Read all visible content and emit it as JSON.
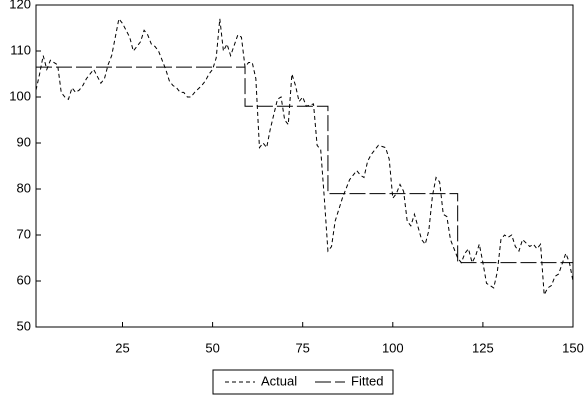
{
  "chart_data": {
    "type": "line",
    "xlim": [
      1,
      150
    ],
    "xticks": [
      25,
      50,
      75,
      100,
      125,
      150
    ],
    "ylim": [
      50,
      120
    ],
    "yticks": [
      50,
      60,
      70,
      80,
      90,
      100,
      110,
      120
    ],
    "series": [
      {
        "name": "Actual",
        "color": "#000000",
        "dash": "4,3",
        "x": [
          1,
          2,
          3,
          4,
          5,
          7,
          8,
          9,
          10,
          11,
          12,
          13,
          14,
          15,
          17,
          18,
          19,
          20,
          21,
          22,
          23,
          24,
          25,
          27,
          28,
          29,
          30,
          31,
          32,
          33,
          34,
          35,
          37,
          38,
          39,
          40,
          41,
          42,
          43,
          44,
          45,
          47,
          48,
          49,
          50,
          51,
          52,
          53,
          54,
          55,
          57,
          58,
          59,
          60,
          61,
          62,
          63,
          64,
          65,
          66,
          68,
          69,
          70,
          71,
          72,
          73,
          74,
          75,
          76,
          78,
          79,
          80,
          81,
          82,
          83,
          84,
          85,
          86,
          88,
          89,
          90,
          91,
          92,
          93,
          94,
          95,
          96,
          98,
          99,
          100,
          101,
          102,
          103,
          104,
          105,
          106,
          108,
          109,
          110,
          111,
          112,
          113,
          114,
          115,
          116,
          118,
          119,
          120,
          121,
          122,
          123,
          124,
          125,
          126,
          128,
          129,
          130,
          131,
          132,
          133,
          134,
          135,
          136,
          138,
          139,
          140,
          141,
          142,
          143,
          144,
          145,
          146,
          148,
          149,
          150
        ],
        "values": [
          101.5,
          105,
          109,
          106,
          108,
          107,
          101,
          100,
          99.5,
          102,
          101,
          101.5,
          102.5,
          104,
          106,
          104.5,
          103,
          104,
          107,
          109,
          113,
          117,
          116,
          113,
          110,
          111,
          112,
          114.5,
          113.5,
          111.5,
          111,
          110,
          106,
          103.5,
          102.5,
          102,
          101,
          101,
          100,
          100,
          101,
          102.5,
          103.5,
          105,
          106,
          108.5,
          117,
          110,
          111.5,
          109,
          113.5,
          113,
          106.5,
          107.5,
          107.5,
          104,
          89,
          90,
          89,
          93,
          99.5,
          100,
          95,
          94,
          105,
          102.5,
          99,
          100,
          98,
          98.5,
          89.5,
          88.5,
          78,
          66.5,
          67.5,
          73,
          75.5,
          78,
          82,
          83,
          84,
          83,
          82.5,
          86,
          87.5,
          88.5,
          89.5,
          89,
          86.5,
          78,
          79,
          81,
          79.5,
          73,
          72,
          74.5,
          69,
          68,
          71,
          78.5,
          82.5,
          81.5,
          74.5,
          74,
          69,
          65,
          64,
          66,
          67,
          64,
          65.5,
          68,
          64,
          59.5,
          58.5,
          62,
          69,
          70,
          69.5,
          70,
          67.5,
          66.5,
          69,
          67.5,
          68,
          67,
          68,
          57,
          58.5,
          59,
          61,
          61.5,
          66,
          64,
          60
        ]
      },
      {
        "name": "Fitted",
        "color": "#000000",
        "dash": "16,4",
        "x": [
          1,
          59,
          59,
          82,
          82,
          118,
          118,
          150
        ],
        "values": [
          106.5,
          106.5,
          98,
          98,
          79,
          79,
          64,
          64
        ]
      }
    ]
  }
}
